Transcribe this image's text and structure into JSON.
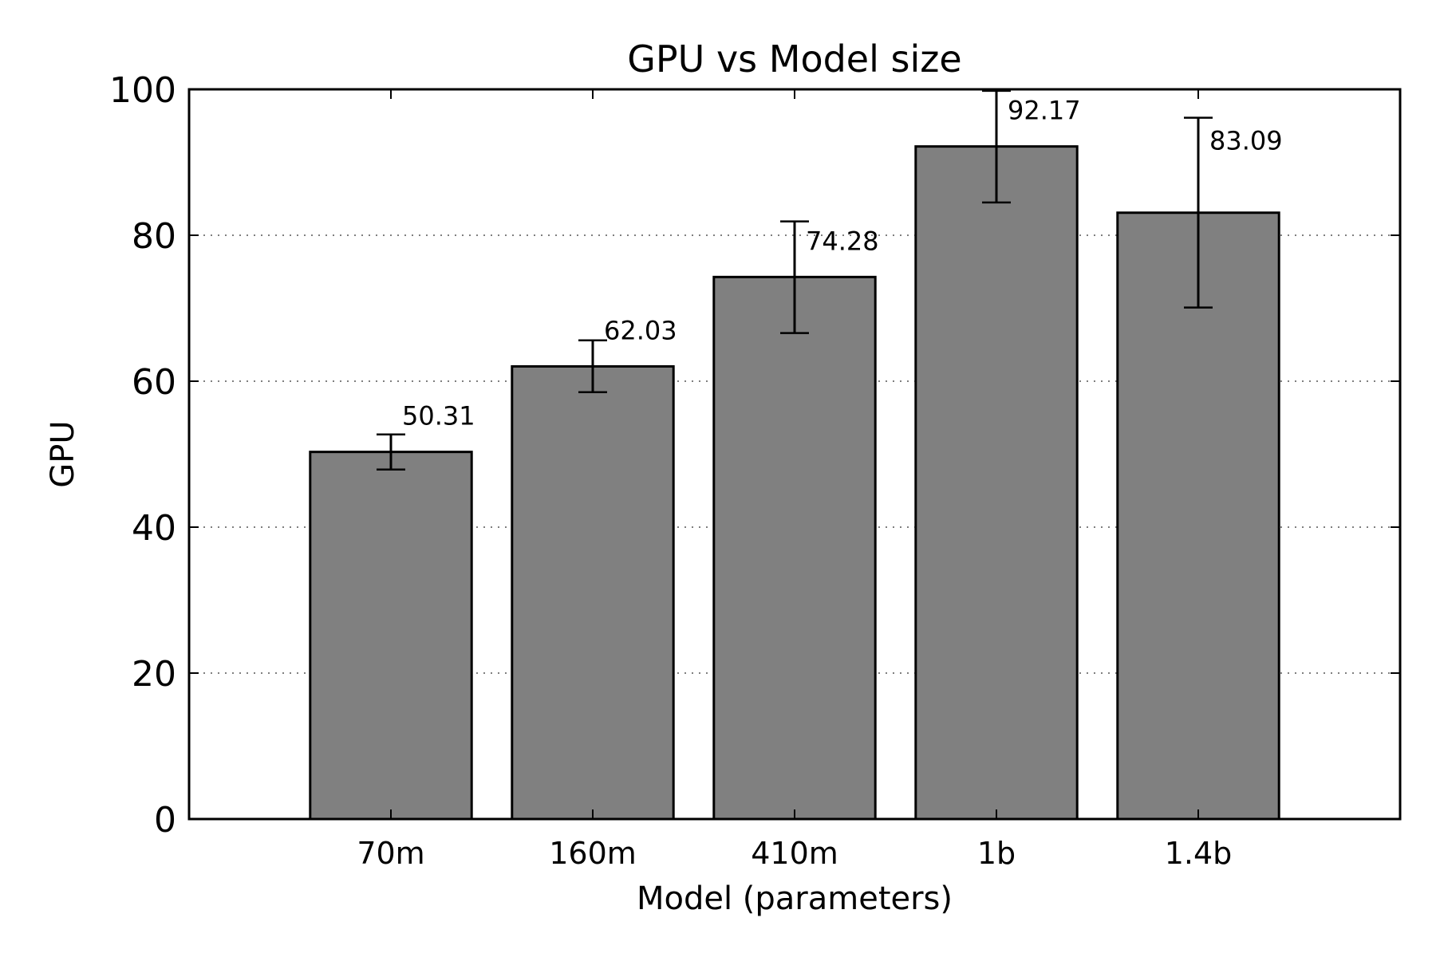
{
  "chart_data": {
    "type": "bar",
    "title": "GPU vs Model size",
    "xlabel": "Model (parameters)",
    "ylabel": "GPU",
    "categories": [
      "70m",
      "160m",
      "410m",
      "1b",
      "1.4b"
    ],
    "values": [
      50.31,
      62.03,
      74.28,
      92.17,
      83.09
    ],
    "value_labels": [
      "50.31",
      "62.03",
      "74.28",
      "92.17",
      "83.09"
    ],
    "error_low": [
      47.9,
      58.5,
      66.6,
      84.5,
      70.1
    ],
    "error_high": [
      52.7,
      65.6,
      81.9,
      99.8,
      96.1
    ],
    "ylim": [
      0,
      100
    ],
    "yticks": [
      0,
      20,
      40,
      60,
      80,
      100
    ],
    "ytick_labels": [
      "0",
      "20",
      "40",
      "60",
      "80",
      "100"
    ],
    "grid": "horizontal dotted",
    "bar_color": "#808080",
    "edge_color": "#000000"
  }
}
